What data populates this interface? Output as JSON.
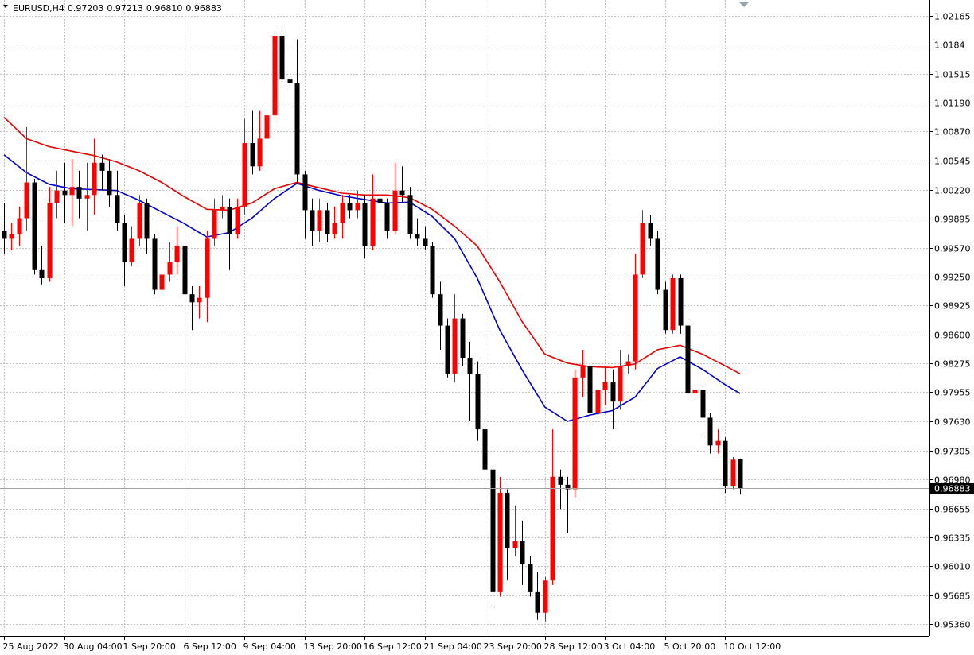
{
  "chart_data": {
    "type": "candlestick",
    "title": "EURUSD,H4",
    "quote_labels": [
      "0.97203",
      "0.97213",
      "0.96810",
      "0.96883"
    ],
    "current_price": 0.96883,
    "up_color": "#ff0000",
    "down_color": "#000000",
    "grid": true,
    "ylim": [
      0.9523,
      1.0234
    ],
    "yticks": [
      1.02165,
      1.0184,
      1.01515,
      {
        "value": 1.0119,
        "label": "1.01190"
      },
      {
        "value": 1.0087,
        "label": "1.00870"
      },
      1.00545,
      {
        "value": 1.0022,
        "label": "1.00220"
      },
      0.99895,
      {
        "value": 0.9957,
        "label": "0.99570"
      },
      {
        "value": 0.9925,
        "label": "0.99250"
      },
      0.98925,
      {
        "value": 0.986,
        "label": "0.98600"
      },
      0.98275,
      0.97955,
      {
        "value": 0.9763,
        "label": "0.97630"
      },
      0.97305,
      {
        "value": 0.9698,
        "label": "0.96980"
      },
      0.96655,
      0.96335,
      {
        "value": 0.9601,
        "label": "0.96010"
      },
      0.95685,
      {
        "value": 0.9536,
        "label": "0.95360"
      }
    ],
    "categories": [
      "25 Aug 2022",
      null,
      null,
      null,
      null,
      null,
      null,
      null,
      "30 Aug 04:00",
      null,
      null,
      null,
      null,
      null,
      null,
      null,
      "1 Sep 20:00",
      null,
      null,
      null,
      null,
      null,
      null,
      null,
      "6 Sep 12:00",
      null,
      null,
      null,
      null,
      null,
      null,
      null,
      "9 Sep 04:00",
      null,
      null,
      null,
      null,
      null,
      null,
      null,
      "13 Sep 20:00",
      null,
      null,
      null,
      null,
      null,
      null,
      null,
      "16 Sep 12:00",
      null,
      null,
      null,
      null,
      null,
      null,
      null,
      "21 Sep 04:00",
      null,
      null,
      null,
      null,
      null,
      null,
      null,
      "23 Sep 20:00",
      null,
      null,
      null,
      null,
      null,
      null,
      null,
      "28 Sep 12:00",
      null,
      null,
      null,
      null,
      null,
      null,
      null,
      "3 Oct 04:00",
      null,
      null,
      null,
      null,
      null,
      null,
      null,
      "5 Oct 20:00",
      null,
      null,
      null,
      null,
      null,
      null,
      null,
      "10 Oct 12:00",
      null,
      null
    ],
    "ohlc": [
      [
        0.9976,
        1.0007,
        0.995,
        0.9967
      ],
      [
        0.9967,
        0.9985,
        0.9954,
        0.9972
      ],
      [
        0.9972,
        1.0003,
        0.9959,
        0.999
      ],
      [
        0.999,
        1.0092,
        0.9976,
        1.003
      ],
      [
        1.003,
        1.0034,
        0.9927,
        0.9932
      ],
      [
        0.9932,
        0.9959,
        0.9916,
        0.9923
      ],
      [
        0.9923,
        1.0025,
        0.9919,
        1.0007
      ],
      [
        1.0007,
        1.0043,
        0.999,
        1.0021
      ],
      [
        1.0021,
        1.0052,
        0.9985,
        1.0016
      ],
      [
        1.0016,
        1.0056,
        0.9981,
        1.0025
      ],
      [
        1.0025,
        1.0043,
        0.999,
        1.0012
      ],
      [
        1.0012,
        1.0052,
        0.9976,
        1.0016
      ],
      [
        1.0016,
        1.0079,
        0.9994,
        1.0052
      ],
      [
        1.0052,
        1.0061,
        1.0021,
        1.0043
      ],
      [
        1.0043,
        1.0056,
        1.0003,
        1.0016
      ],
      [
        1.0016,
        1.0043,
        0.9976,
        0.9985
      ],
      [
        0.9985,
        0.9994,
        0.9914,
        0.9941
      ],
      [
        0.9941,
        0.9981,
        0.9936,
        0.9967
      ],
      [
        0.9967,
        1.0016,
        0.9959,
        1.0007
      ],
      [
        1.0007,
        1.0012,
        0.995,
        0.9967
      ],
      [
        0.9967,
        0.9972,
        0.9905,
        0.991
      ],
      [
        0.991,
        0.9959,
        0.9905,
        0.9927
      ],
      [
        0.9927,
        0.9963,
        0.9919,
        0.9941
      ],
      [
        0.9941,
        0.9981,
        0.9927,
        0.9959
      ],
      [
        0.9959,
        0.9967,
        0.9883,
        0.9905
      ],
      [
        0.9905,
        0.9914,
        0.9865,
        0.9896
      ],
      [
        0.9896,
        0.9914,
        0.9878,
        0.9901
      ],
      [
        0.9901,
        0.9976,
        0.9874,
        0.9967
      ],
      [
        0.9967,
        1.0012,
        0.9959,
        0.9999
      ],
      [
        0.9999,
        1.0016,
        0.999,
        1.0003
      ],
      [
        1.0003,
        1.0012,
        0.9932,
        0.9972
      ],
      [
        0.9972,
        1.0012,
        0.9967,
        1.0003
      ],
      [
        1.0003,
        1.0101,
        0.9994,
        1.0074
      ],
      [
        1.0074,
        1.011,
        1.0039,
        1.0048
      ],
      [
        1.0048,
        1.011,
        1.0043,
        1.0079
      ],
      [
        1.0079,
        1.0145,
        1.007,
        1.0105
      ],
      [
        1.0105,
        1.0199,
        1.0096,
        1.0194
      ],
      [
        1.0194,
        1.0199,
        1.0114,
        1.0145
      ],
      [
        1.0145,
        1.0154,
        1.0119,
        1.0141
      ],
      [
        1.0141,
        1.019,
        1.003,
        1.0039
      ],
      [
        1.0039,
        1.0043,
        0.9967,
        0.9999
      ],
      [
        0.9999,
        1.0012,
        0.9959,
        0.9976
      ],
      [
        0.9976,
        1.0012,
        0.9963,
        0.9999
      ],
      [
        0.9999,
        1.0007,
        0.9963,
        0.9972
      ],
      [
        0.9972,
        1.0003,
        0.9967,
        0.9985
      ],
      [
        0.9985,
        1.0016,
        0.9967,
        1.0007
      ],
      [
        1.0007,
        1.0016,
        0.999,
        0.9999
      ],
      [
        0.9999,
        1.0021,
        0.999,
        1.0007
      ],
      [
        1.0007,
        1.0016,
        0.9945,
        0.9959
      ],
      [
        0.9959,
        1.0039,
        0.9954,
        1.0012
      ],
      [
        1.0012,
        1.0016,
        0.9994,
        1.0007
      ],
      [
        1.0007,
        1.0012,
        0.9967,
        0.9976
      ],
      [
        0.9976,
        1.0052,
        0.9972,
        1.0021
      ],
      [
        1.0021,
        1.0048,
        1.0007,
        1.0016
      ],
      [
        1.0016,
        1.0025,
        0.9967,
        0.9972
      ],
      [
        0.9972,
        0.999,
        0.9959,
        0.9967
      ],
      [
        0.9967,
        0.9981,
        0.9954,
        0.9959
      ],
      [
        0.9959,
        0.9963,
        0.9901,
        0.9905
      ],
      [
        0.9905,
        0.9919,
        0.9843,
        0.987
      ],
      [
        0.987,
        0.9878,
        0.9812,
        0.9816
      ],
      [
        0.9816,
        0.9905,
        0.9807,
        0.9878
      ],
      [
        0.9878,
        0.9883,
        0.9825,
        0.9834
      ],
      [
        0.9834,
        0.9852,
        0.9763,
        0.9816
      ],
      [
        0.9816,
        0.983,
        0.9741,
        0.9754
      ],
      [
        0.9754,
        0.9758,
        0.9692,
        0.9709
      ],
      [
        0.9709,
        0.9714,
        0.9554,
        0.9572
      ],
      [
        0.9572,
        0.9701,
        0.9567,
        0.9683
      ],
      [
        0.9683,
        0.9687,
        0.9585,
        0.9621
      ],
      [
        0.9621,
        0.9669,
        0.9612,
        0.9629
      ],
      [
        0.9629,
        0.9652,
        0.958,
        0.9603
      ],
      [
        0.9603,
        0.9612,
        0.9567,
        0.9572
      ],
      [
        0.9572,
        0.9594,
        0.9541,
        0.9549
      ],
      [
        0.9549,
        0.9589,
        0.9539,
        0.9585
      ],
      [
        0.9585,
        0.9754,
        0.958,
        0.9701
      ],
      [
        0.9701,
        0.9709,
        0.9665,
        0.9692
      ],
      [
        0.9692,
        0.9701,
        0.9638,
        0.9687
      ],
      [
        0.9687,
        0.9821,
        0.9678,
        0.9812
      ],
      [
        0.9812,
        0.9843,
        0.979,
        0.9825
      ],
      [
        0.9825,
        0.9834,
        0.9736,
        0.9772
      ],
      [
        0.9772,
        0.9816,
        0.9763,
        0.9798
      ],
      [
        0.9798,
        0.9825,
        0.9781,
        0.9807
      ],
      [
        0.9807,
        0.9821,
        0.9754,
        0.9785
      ],
      [
        0.9785,
        0.9843,
        0.9776,
        0.9825
      ],
      [
        0.9825,
        0.9838,
        0.9816,
        0.983
      ],
      [
        0.983,
        0.995,
        0.9821,
        0.9927
      ],
      [
        0.9927,
        0.9999,
        0.9923,
        0.9985
      ],
      [
        0.9985,
        0.9994,
        0.9959,
        0.9967
      ],
      [
        0.9967,
        0.9976,
        0.9905,
        0.991
      ],
      [
        0.991,
        0.9919,
        0.9861,
        0.9865
      ],
      [
        0.9865,
        0.9927,
        0.9861,
        0.9923
      ],
      [
        0.9923,
        0.9927,
        0.9861,
        0.987
      ],
      [
        0.987,
        0.9878,
        0.979,
        0.9794
      ],
      [
        0.9794,
        0.9816,
        0.979,
        0.9798
      ],
      [
        0.9798,
        0.9803,
        0.975,
        0.9767
      ],
      [
        0.9767,
        0.9772,
        0.9727,
        0.9736
      ],
      [
        0.9736,
        0.9754,
        0.9727,
        0.9741
      ],
      [
        0.9741,
        0.9745,
        0.9683,
        0.969
      ],
      [
        0.969,
        0.9723,
        0.9687,
        0.972
      ],
      [
        0.97203,
        0.97213,
        0.9681,
        0.96883
      ]
    ],
    "series": [
      {
        "color": "#e80000",
        "x": [
          0,
          3,
          6,
          9,
          12,
          15,
          18,
          21,
          24,
          27,
          30,
          33,
          36,
          39,
          42,
          45,
          48,
          51,
          54,
          57,
          60,
          63,
          66,
          69,
          72,
          75,
          78,
          81,
          84,
          87,
          90,
          93,
          96,
          98
        ],
        "values": [
          1.0103,
          1.0079,
          1.007,
          1.0065,
          1.006,
          1.0053,
          1.0043,
          1.003,
          1.0014,
          1.0,
          0.9999,
          1.0007,
          1.0023,
          1.003,
          1.0024,
          1.0018,
          1.0016,
          1.0016,
          1.0013,
          1.0,
          0.9981,
          0.9959,
          0.9919,
          0.9874,
          0.9838,
          0.9828,
          0.9824,
          0.9823,
          0.9827,
          0.9843,
          0.9848,
          0.9838,
          0.9825,
          0.9816
        ]
      },
      {
        "color": "#0000c8",
        "x": [
          0,
          3,
          6,
          9,
          12,
          15,
          18,
          21,
          24,
          27,
          30,
          33,
          36,
          39,
          42,
          45,
          48,
          51,
          54,
          57,
          60,
          63,
          66,
          69,
          72,
          75,
          78,
          81,
          84,
          87,
          90,
          93,
          96,
          98
        ],
        "values": [
          1.0061,
          1.0041,
          1.0028,
          1.0023,
          1.0022,
          1.0021,
          1.001,
          0.9997,
          0.9984,
          0.9969,
          0.9974,
          0.999,
          1.0012,
          1.0029,
          1.0021,
          1.0015,
          1.0011,
          1.0007,
          1.0008,
          0.9992,
          0.9967,
          0.9923,
          0.9865,
          0.982,
          0.9779,
          0.9763,
          0.977,
          0.9775,
          0.979,
          0.9822,
          0.9835,
          0.9821,
          0.9804,
          0.9794
        ]
      }
    ]
  }
}
